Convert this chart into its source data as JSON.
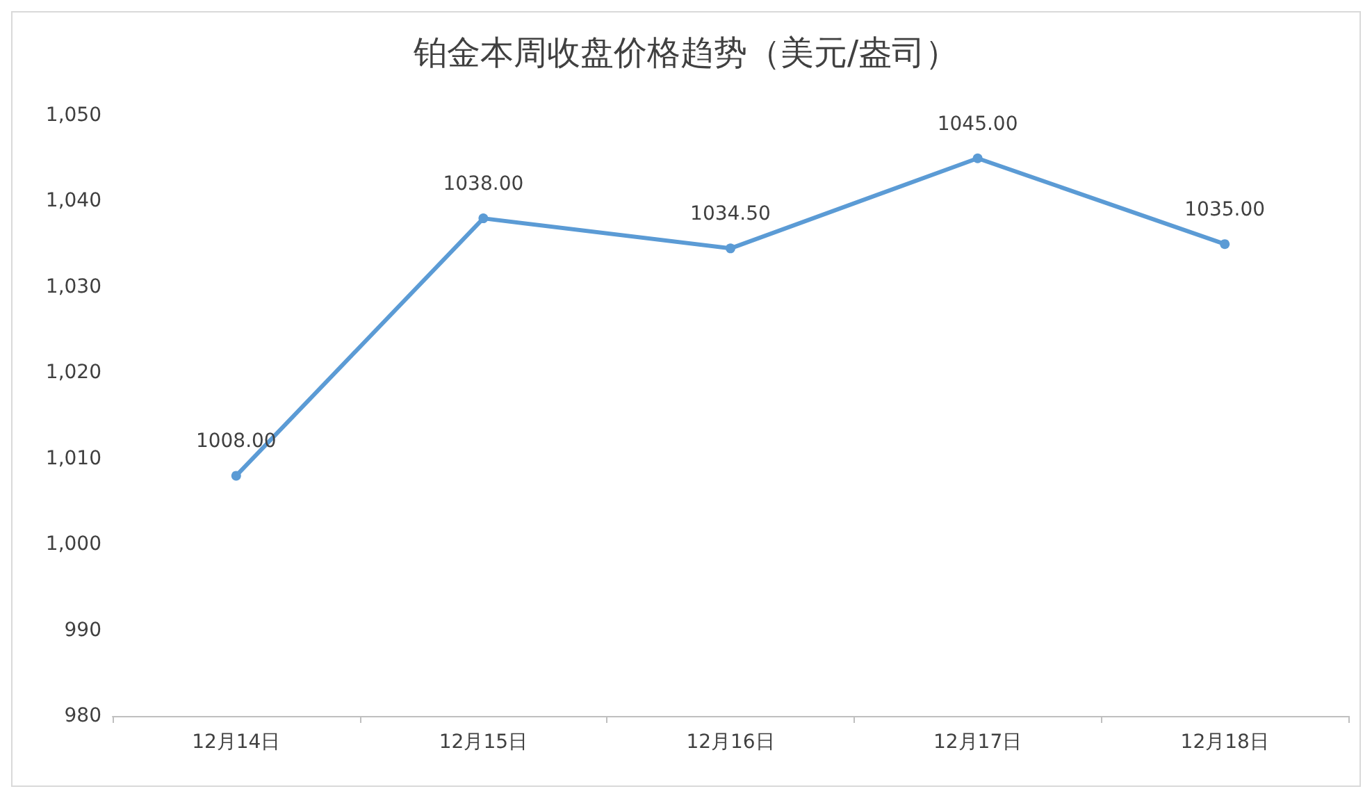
{
  "chart_data": {
    "type": "line",
    "title": "铂金本周收盘价格趋势（美元/盎司）",
    "categories": [
      "12月14日",
      "12月15日",
      "12月16日",
      "12月17日",
      "12月18日"
    ],
    "series": [
      {
        "color": "#5b9bd5",
        "values": [
          1008,
          1038,
          1034.5,
          1045,
          1035
        ],
        "value_labels": [
          "1008.00",
          "1038.00",
          "1034.50",
          "1045.00",
          "1035.00"
        ]
      }
    ],
    "ylim": [
      980,
      1050
    ],
    "yticks": [
      {
        "value": 980,
        "label": "980"
      },
      {
        "value": 990,
        "label": "990"
      },
      {
        "value": 1000,
        "label": "1,000"
      },
      {
        "value": 1010,
        "label": "1,010"
      },
      {
        "value": 1020,
        "label": "1,020"
      },
      {
        "value": 1030,
        "label": "1,030"
      },
      {
        "value": 1040,
        "label": "1,040"
      },
      {
        "value": 1050,
        "label": "1,050"
      }
    ],
    "grid": false,
    "marker": "circle",
    "line_style": "solid"
  }
}
